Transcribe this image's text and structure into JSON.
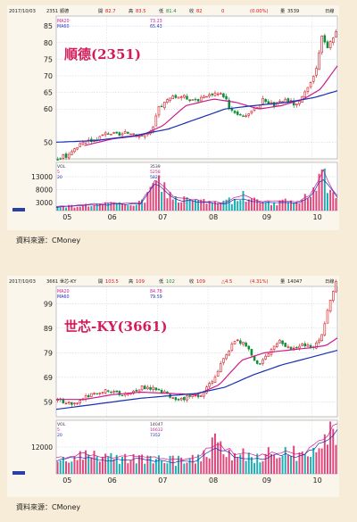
{
  "source_label": "資料來源：CMoney",
  "chart_data": [
    {
      "type": "candlestick",
      "title": "順德(2351)",
      "header": {
        "date": "2017/10/03",
        "code": "2351 順德",
        "open_label": "開",
        "open": "82.7",
        "high_label": "高",
        "high": "83.5",
        "low_label": "低",
        "low": "81.4",
        "close_label": "收",
        "close": "82",
        "change": "0",
        "change_pct": "(0.00%)",
        "volume_label": "量",
        "volume": "3539",
        "period": "日線"
      },
      "ma_legend": [
        {
          "name": "MA20",
          "value": "73.23",
          "color": "#cc1a8a"
        },
        {
          "name": "MA60",
          "value": "65.43",
          "color": "#1a2fb5"
        }
      ],
      "vol_legend": [
        {
          "name": "VOL",
          "value": "3539",
          "color": "#333333"
        },
        {
          "name": "5",
          "value": "5258",
          "color": "#cc1a8a"
        },
        {
          "name": "20",
          "value": "5829",
          "color": "#1a2fb5"
        }
      ],
      "y_ticks": [
        50,
        60,
        65,
        70,
        75,
        80,
        85
      ],
      "y_range": [
        45,
        88
      ],
      "vol_ticks": [
        "13000",
        "8000",
        "3000"
      ],
      "vol_tick_values": [
        13000,
        8000,
        3000
      ],
      "vol_range": [
        0,
        18500
      ],
      "x_labels": [
        "05",
        "06",
        "07",
        "08",
        "09",
        "10"
      ],
      "x_label_pos": [
        0.09,
        0.25,
        0.43,
        0.61,
        0.8,
        0.98
      ],
      "price_anchors": [
        [
          0,
          45
        ],
        [
          0.03,
          46
        ],
        [
          0.06,
          48
        ],
        [
          0.1,
          50
        ],
        [
          0.14,
          51
        ],
        [
          0.18,
          53
        ],
        [
          0.22,
          52
        ],
        [
          0.26,
          53
        ],
        [
          0.3,
          52
        ],
        [
          0.34,
          53
        ],
        [
          0.36,
          60
        ],
        [
          0.4,
          63
        ],
        [
          0.44,
          64
        ],
        [
          0.48,
          63
        ],
        [
          0.52,
          63
        ],
        [
          0.56,
          65
        ],
        [
          0.6,
          64
        ],
        [
          0.62,
          60
        ],
        [
          0.66,
          58
        ],
        [
          0.7,
          59
        ],
        [
          0.74,
          63
        ],
        [
          0.78,
          61
        ],
        [
          0.82,
          63
        ],
        [
          0.86,
          61
        ],
        [
          0.9,
          66
        ],
        [
          0.93,
          72
        ],
        [
          0.95,
          82
        ],
        [
          0.97,
          79
        ],
        [
          1,
          83
        ]
      ],
      "ma20_anchors": [
        [
          0.1,
          49
        ],
        [
          0.2,
          51
        ],
        [
          0.3,
          52
        ],
        [
          0.38,
          55
        ],
        [
          0.46,
          61
        ],
        [
          0.56,
          63
        ],
        [
          0.64,
          62
        ],
        [
          0.72,
          60
        ],
        [
          0.8,
          61
        ],
        [
          0.88,
          63
        ],
        [
          0.94,
          66
        ],
        [
          1,
          73
        ]
      ],
      "ma60_anchors": [
        [
          0,
          50
        ],
        [
          0.14,
          50.5
        ],
        [
          0.28,
          52
        ],
        [
          0.4,
          54
        ],
        [
          0.5,
          57
        ],
        [
          0.6,
          60
        ],
        [
          0.7,
          61
        ],
        [
          0.82,
          62
        ],
        [
          0.92,
          63.5
        ],
        [
          1,
          65.5
        ]
      ],
      "vol_anchors": [
        [
          0,
          1500
        ],
        [
          0.12,
          2500
        ],
        [
          0.3,
          3000
        ],
        [
          0.36,
          12500
        ],
        [
          0.42,
          5000
        ],
        [
          0.5,
          4000
        ],
        [
          0.6,
          3000
        ],
        [
          0.66,
          6000
        ],
        [
          0.72,
          3500
        ],
        [
          0.86,
          3500
        ],
        [
          0.9,
          6000
        ],
        [
          0.95,
          14500
        ],
        [
          1,
          5500
        ]
      ],
      "candle_count": 100
    },
    {
      "type": "candlestick",
      "title": "世芯-KY(3661)",
      "header": {
        "date": "2017/10/03",
        "code": "3661 世芯-KY",
        "open_label": "開",
        "open": "103.5",
        "high_label": "高",
        "high": "109",
        "low_label": "低",
        "low": "102",
        "close_label": "收",
        "close": "109",
        "change": "△4.5",
        "change_pct": "(4.31%)",
        "volume_label": "量",
        "volume": "14047",
        "period": "日線"
      },
      "ma_legend": [
        {
          "name": "MA20",
          "value": "84.78",
          "color": "#cc1a8a"
        },
        {
          "name": "MA60",
          "value": "79.59",
          "color": "#1a2fb5"
        }
      ],
      "vol_legend": [
        {
          "name": "VOL",
          "value": "14047",
          "color": "#333333"
        },
        {
          "name": "5",
          "value": "16632",
          "color": "#cc1a8a"
        },
        {
          "name": "20",
          "value": "7352",
          "color": "#1a2fb5"
        }
      ],
      "y_ticks": [
        59,
        69,
        79,
        89,
        99
      ],
      "y_range": [
        53,
        106
      ],
      "vol_ticks": [
        "12000"
      ],
      "vol_tick_values": [
        12000
      ],
      "vol_range": [
        0,
        24000
      ],
      "x_labels": [
        "05",
        "06",
        "07",
        "08",
        "09",
        "10"
      ],
      "x_label_pos": [
        0.09,
        0.25,
        0.43,
        0.61,
        0.8,
        0.98
      ],
      "price_anchors": [
        [
          0,
          60
        ],
        [
          0.06,
          58
        ],
        [
          0.12,
          62
        ],
        [
          0.18,
          64
        ],
        [
          0.24,
          62
        ],
        [
          0.3,
          65
        ],
        [
          0.36,
          64
        ],
        [
          0.42,
          60
        ],
        [
          0.48,
          61
        ],
        [
          0.52,
          62
        ],
        [
          0.56,
          68
        ],
        [
          0.6,
          78
        ],
        [
          0.64,
          84
        ],
        [
          0.68,
          82
        ],
        [
          0.72,
          74
        ],
        [
          0.76,
          79
        ],
        [
          0.8,
          84
        ],
        [
          0.84,
          80
        ],
        [
          0.88,
          82
        ],
        [
          0.92,
          81
        ],
        [
          0.95,
          86
        ],
        [
          0.97,
          97
        ],
        [
          1,
          108
        ]
      ],
      "ma20_anchors": [
        [
          0,
          60
        ],
        [
          0.1,
          60
        ],
        [
          0.2,
          62
        ],
        [
          0.3,
          63
        ],
        [
          0.4,
          62.5
        ],
        [
          0.5,
          62
        ],
        [
          0.58,
          66
        ],
        [
          0.66,
          76
        ],
        [
          0.74,
          79
        ],
        [
          0.82,
          80
        ],
        [
          0.9,
          81
        ],
        [
          0.96,
          82
        ],
        [
          1,
          85
        ]
      ],
      "ma60_anchors": [
        [
          0,
          56
        ],
        [
          0.1,
          57.5
        ],
        [
          0.2,
          59
        ],
        [
          0.3,
          60.5
        ],
        [
          0.4,
          61.5
        ],
        [
          0.5,
          62.5
        ],
        [
          0.6,
          65
        ],
        [
          0.7,
          70
        ],
        [
          0.8,
          74
        ],
        [
          0.9,
          77
        ],
        [
          1,
          80
        ]
      ],
      "vol_anchors": [
        [
          0,
          7000
        ],
        [
          0.1,
          9000
        ],
        [
          0.2,
          7000
        ],
        [
          0.3,
          8000
        ],
        [
          0.4,
          6000
        ],
        [
          0.5,
          7000
        ],
        [
          0.56,
          14000
        ],
        [
          0.64,
          9000
        ],
        [
          0.72,
          8000
        ],
        [
          0.8,
          10000
        ],
        [
          0.88,
          9000
        ],
        [
          0.94,
          16000
        ],
        [
          1,
          22000
        ]
      ],
      "candle_count": 100
    }
  ]
}
